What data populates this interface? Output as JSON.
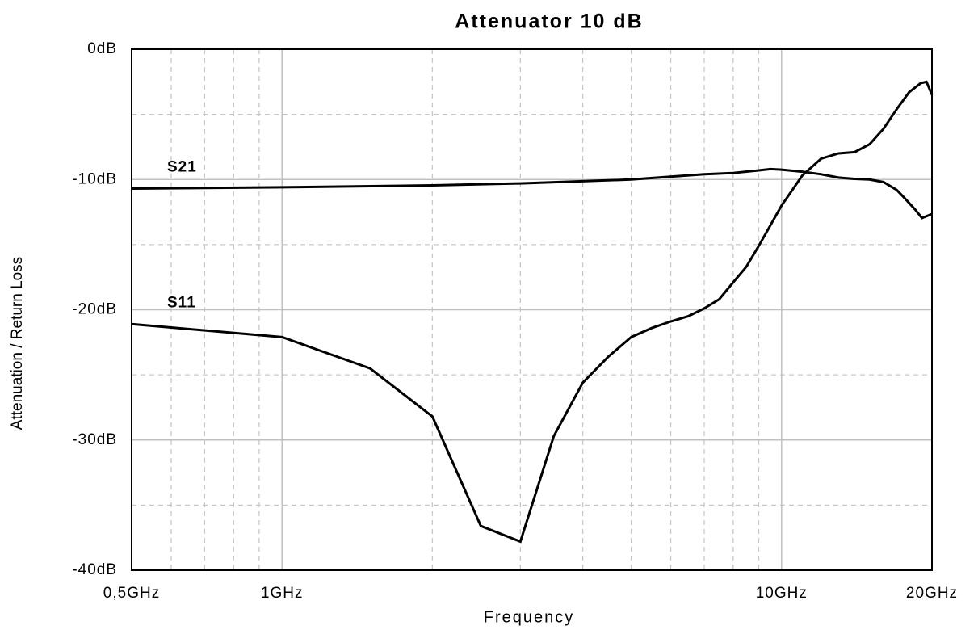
{
  "chart_data": {
    "type": "line",
    "title": "Attenuator 10 dB",
    "xlabel": "Frequency",
    "ylabel": "Attenuation / Return Loss",
    "xscale": "log",
    "xlim": [
      0.5,
      20
    ],
    "ylim": [
      -40,
      0
    ],
    "xticks": [
      {
        "value": 0.5,
        "label": "0,5GHz"
      },
      {
        "value": 1,
        "label": "1GHz"
      },
      {
        "value": 10,
        "label": "10GHz"
      },
      {
        "value": 20,
        "label": "20GHz"
      }
    ],
    "xminor_ticks": [
      0.6,
      0.7,
      0.8,
      0.9,
      2,
      3,
      4,
      5,
      6,
      7,
      8,
      9
    ],
    "yticks": [
      {
        "value": 0,
        "label": "0dB"
      },
      {
        "value": -10,
        "label": "-10dB"
      },
      {
        "value": -20,
        "label": "-20dB"
      },
      {
        "value": -30,
        "label": "-30dB"
      },
      {
        "value": -40,
        "label": "-40dB"
      }
    ],
    "yminor_ticks": [
      -5,
      -15,
      -25,
      -35
    ],
    "grid": true,
    "series": [
      {
        "name": "S21",
        "color": "#000000",
        "x": [
          0.5,
          1,
          2,
          3,
          5,
          7,
          8,
          9,
          9.5,
          10,
          11,
          12,
          13,
          14,
          15,
          16,
          17,
          17.6,
          18.5,
          19.1,
          20
        ],
        "values": [
          -10.7,
          -10.6,
          -10.45,
          -10.3,
          -10.0,
          -9.6,
          -9.5,
          -9.3,
          -9.2,
          -9.25,
          -9.4,
          -9.6,
          -9.85,
          -9.95,
          -10.0,
          -10.2,
          -10.8,
          -11.4,
          -12.3,
          -12.96,
          -12.65
        ]
      },
      {
        "name": "S11",
        "color": "#000000",
        "x": [
          0.5,
          1,
          1.5,
          2,
          2.5,
          3,
          3.5,
          4,
          4.5,
          5,
          5.5,
          6,
          6.5,
          7,
          7.5,
          8,
          8.5,
          9,
          10,
          11,
          12,
          13,
          14,
          15,
          16,
          17,
          18,
          19,
          19.5,
          20
        ],
        "values": [
          -21.1,
          -22.1,
          -24.5,
          -28.2,
          -36.6,
          -37.8,
          -29.7,
          -25.6,
          -23.6,
          -22.1,
          -21.4,
          -20.9,
          -20.5,
          -19.9,
          -19.2,
          -17.9,
          -16.7,
          -15.1,
          -12.0,
          -9.7,
          -8.4,
          -8.0,
          -7.9,
          -7.3,
          -6.1,
          -4.6,
          -3.3,
          -2.6,
          -2.5,
          -3.5
        ]
      }
    ]
  }
}
